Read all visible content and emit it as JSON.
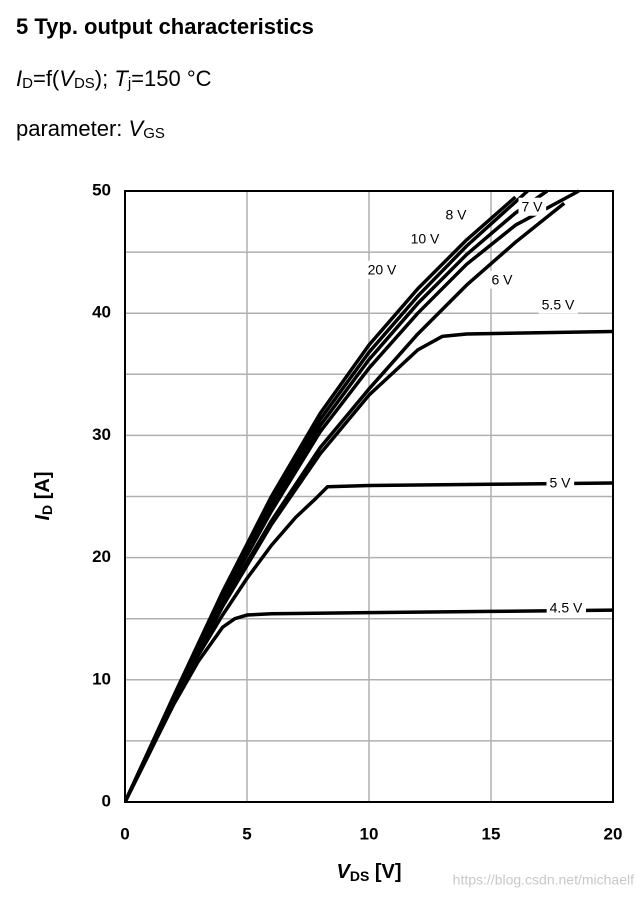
{
  "chart_data": {
    "type": "line",
    "title": "5 Typ. output characteristics",
    "subtitle_parts": [
      "I",
      "D",
      "=f(",
      "V",
      "DS",
      "); ",
      "T",
      "j",
      "=150 °C"
    ],
    "parameter_parts": [
      "parameter: ",
      "V",
      "GS"
    ],
    "x_label_parts": [
      "V",
      "DS",
      " [V]"
    ],
    "y_label_parts": [
      "I",
      "D",
      " [A]"
    ],
    "watermark": "https://blog.csdn.net/michaelf",
    "xlim": [
      0,
      20
    ],
    "ylim": [
      0,
      50
    ],
    "xticks": [
      0,
      5,
      10,
      15,
      20
    ],
    "yticks": [
      0,
      10,
      20,
      30,
      40,
      50
    ],
    "yminor_grid": [
      5,
      15,
      25,
      35,
      45
    ],
    "grid": true,
    "series": [
      {
        "name": "20 V",
        "color": "#000000",
        "x": [
          0,
          2,
          4,
          6,
          8,
          10,
          12,
          14,
          16
        ],
        "values": [
          0,
          8.7,
          17.2,
          25,
          31.8,
          37.4,
          42,
          46,
          49.5
        ]
      },
      {
        "name": "10 V",
        "color": "#000000",
        "x": [
          0,
          2,
          4,
          6,
          8,
          10,
          12,
          14,
          16.5
        ],
        "values": [
          0,
          8.6,
          17,
          24.6,
          31.3,
          36.8,
          41.4,
          45.5,
          50
        ]
      },
      {
        "name": "8 V",
        "color": "#000000",
        "x": [
          0,
          2,
          4,
          6,
          8,
          10,
          12,
          14,
          16,
          17.3
        ],
        "values": [
          0,
          8.5,
          16.8,
          24.2,
          30.8,
          36.2,
          40.8,
          44.8,
          48.2,
          50
        ]
      },
      {
        "name": "7 V",
        "color": "#000000",
        "x": [
          0,
          2,
          4,
          6,
          8,
          10,
          12,
          14,
          16,
          18.6
        ],
        "values": [
          0,
          8.4,
          16.6,
          23.8,
          30.3,
          35.5,
          40,
          44,
          47.2,
          50
        ]
      },
      {
        "name": "6 V",
        "color": "#000000",
        "x": [
          0,
          2,
          4,
          6,
          8,
          10,
          12,
          14,
          16,
          18
        ],
        "values": [
          0,
          8.3,
          16.2,
          23,
          29,
          33.8,
          38.3,
          42.3,
          45.8,
          49
        ]
      },
      {
        "name": "5.5 V",
        "color": "#000000",
        "x": [
          0,
          2,
          4,
          6,
          8,
          10,
          12,
          13,
          14,
          20
        ],
        "values": [
          0,
          8.3,
          16,
          22.7,
          28.5,
          33.3,
          37,
          38.1,
          38.3,
          38.5
        ]
      },
      {
        "name": "5 V",
        "color": "#000000",
        "x": [
          0,
          1,
          2,
          3,
          4,
          5,
          6,
          7,
          7.8,
          8.3,
          10,
          15,
          20
        ],
        "values": [
          0,
          4,
          8.2,
          12,
          15.3,
          18.3,
          21,
          23.3,
          24.8,
          25.8,
          25.9,
          26,
          26.1
        ]
      },
      {
        "name": "4.5 V",
        "color": "#000000",
        "x": [
          0,
          1,
          2,
          3,
          4,
          4.5,
          5,
          6,
          10,
          15,
          20
        ],
        "values": [
          0,
          4,
          8,
          11.5,
          14.3,
          15,
          15.3,
          15.4,
          15.5,
          15.6,
          15.7
        ]
      }
    ]
  }
}
